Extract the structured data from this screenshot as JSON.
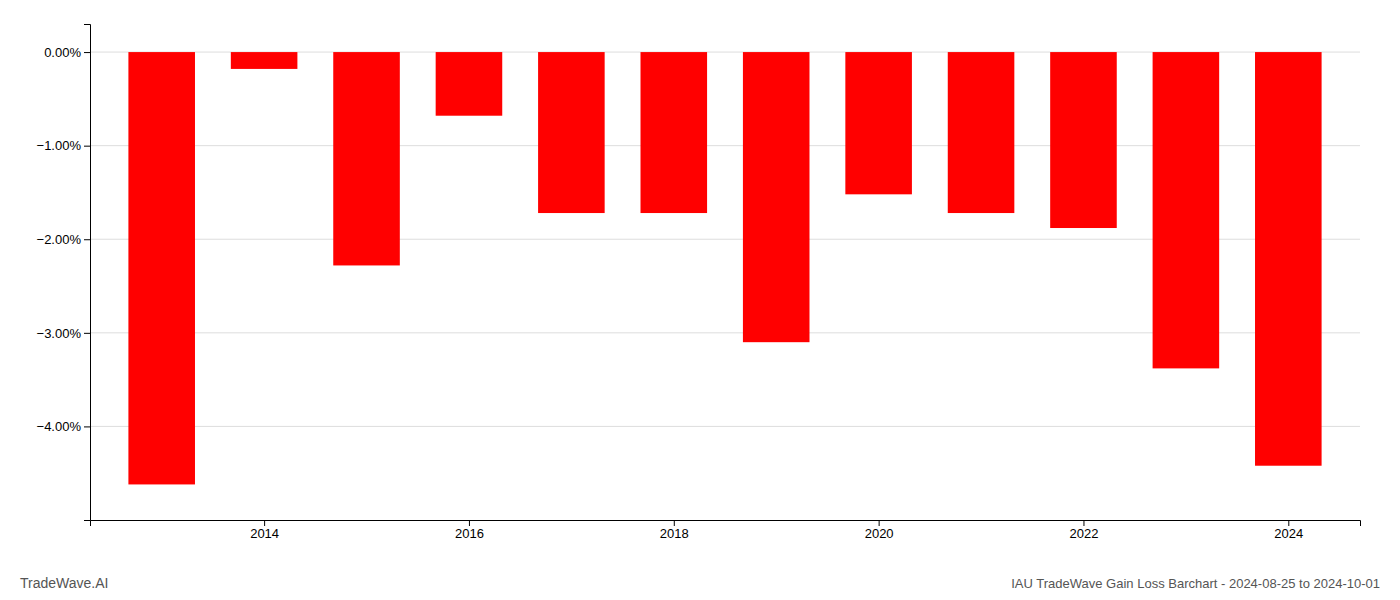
{
  "chart_data": {
    "type": "bar",
    "title": "IAU TradeWave Gain Loss Barchart - 2024-08-25 to 2024-10-01",
    "annotations": [
      "TradeWave.AI"
    ],
    "x": [
      2013,
      2014,
      2015,
      2016,
      2017,
      2018,
      2019,
      2020,
      2021,
      2022,
      2023,
      2024
    ],
    "values": [
      -4.62,
      -0.18,
      -2.28,
      -0.68,
      -1.72,
      -1.72,
      -3.1,
      -1.52,
      -1.72,
      -1.88,
      -3.38,
      -4.42
    ],
    "color": "#ff0000",
    "xlim": [
      2012.3,
      2024.7
    ],
    "xticks": [
      2014,
      2016,
      2018,
      2020,
      2022,
      2024
    ],
    "ylim": [
      -5.0,
      0.3
    ],
    "yticks": [
      {
        "value": 0.0,
        "label": "0.00%"
      },
      {
        "value": -1.0,
        "label": "−1.00%"
      },
      {
        "value": -2.0,
        "label": "−2.00%"
      },
      {
        "value": -3.0,
        "label": "−3.00%"
      },
      {
        "value": -4.0,
        "label": "−4.00%"
      }
    ],
    "grid": true
  }
}
